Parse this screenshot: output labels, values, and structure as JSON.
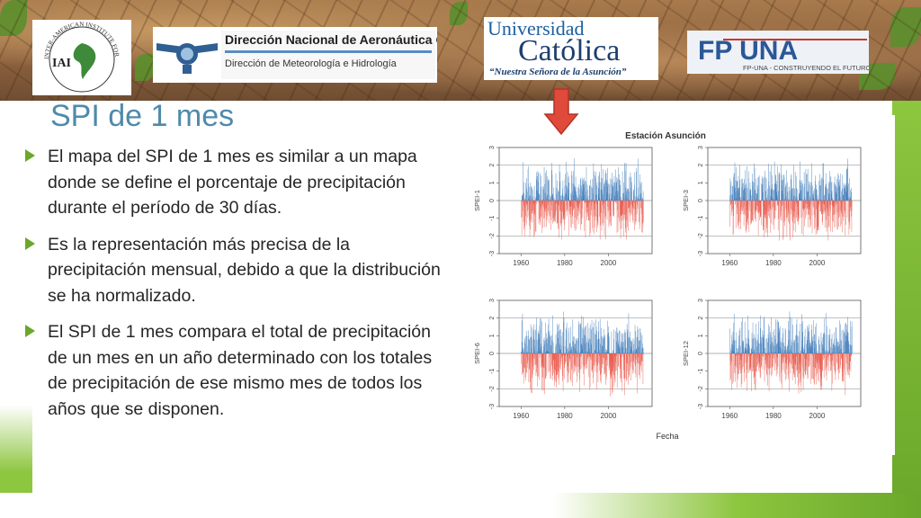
{
  "slide": {
    "title": "SPI de 1 mes",
    "bullets": [
      "El mapa del SPI de 1 mes es similar a un mapa donde se define el porcentaje de precipitación durante el período de 30 días.",
      "Es la representación más precisa de la precipitación mensual, debido a que la distribución se ha normalizado.",
      "El SPI de 1 mes compara el total de precipitación de un mes en un año determinado con los totales de precipitación de ese mismo mes de todos los años que se disponen."
    ]
  },
  "logos": {
    "iai": {
      "label": "IAI",
      "ring_text": "INTER-AMERICAN INSTITUTE FOR GLOBAL CHANGE RESEARCH"
    },
    "dinac": {
      "line1": "Dirección Nacional de Aeronáutica Civil",
      "line2": "Dirección de Meteorología e Hidrología"
    },
    "uc": {
      "line1": "Universidad",
      "line2": "Católica",
      "line3": "“Nuestra Señora de la Asunción”"
    },
    "fpuna": {
      "name": "FP UNA",
      "tagline": "FP-UNA - CONSTRUYENDO EL FUTURO"
    }
  },
  "colors": {
    "positive": "#3d7ab8",
    "negative": "#e8574a",
    "title": "#4f8aaa",
    "accent": "#6aa72a",
    "arrow": "#e04a3a"
  },
  "chart_data": {
    "type": "bar",
    "title": "Estación Asunción",
    "xlabel": "Fecha",
    "panels": [
      {
        "ylabel": "SPEI-1",
        "start": 1960,
        "end": 2016,
        "ylim": [
          -3,
          3
        ],
        "yticks": [
          -3,
          -2,
          -1,
          0,
          1,
          2,
          3
        ],
        "xticks": [
          1960,
          1980,
          2000
        ],
        "pos_peak": 2.6,
        "neg_peak": -2.2
      },
      {
        "ylabel": "SPEI-3",
        "start": 1960,
        "end": 2016,
        "ylim": [
          -3,
          3
        ],
        "yticks": [
          -3,
          -2,
          -1,
          0,
          1,
          2,
          3
        ],
        "xticks": [
          1960,
          1980,
          2000
        ],
        "pos_peak": 2.4,
        "neg_peak": -2.8
      },
      {
        "ylabel": "SPEI-6",
        "start": 1960,
        "end": 2016,
        "ylim": [
          -3,
          3
        ],
        "yticks": [
          -3,
          -2,
          -1,
          0,
          1,
          2,
          3
        ],
        "xticks": [
          1960,
          1980,
          2000
        ],
        "pos_peak": 2.5,
        "neg_peak": -2.8
      },
      {
        "ylabel": "SPEI-12",
        "start": 1960,
        "end": 2016,
        "ylim": [
          -3,
          3
        ],
        "yticks": [
          -3,
          -2,
          -1,
          0,
          1,
          2,
          3
        ],
        "xticks": [
          1960,
          1980,
          2000
        ],
        "pos_peak": 2.6,
        "neg_peak": -3.0
      }
    ]
  }
}
